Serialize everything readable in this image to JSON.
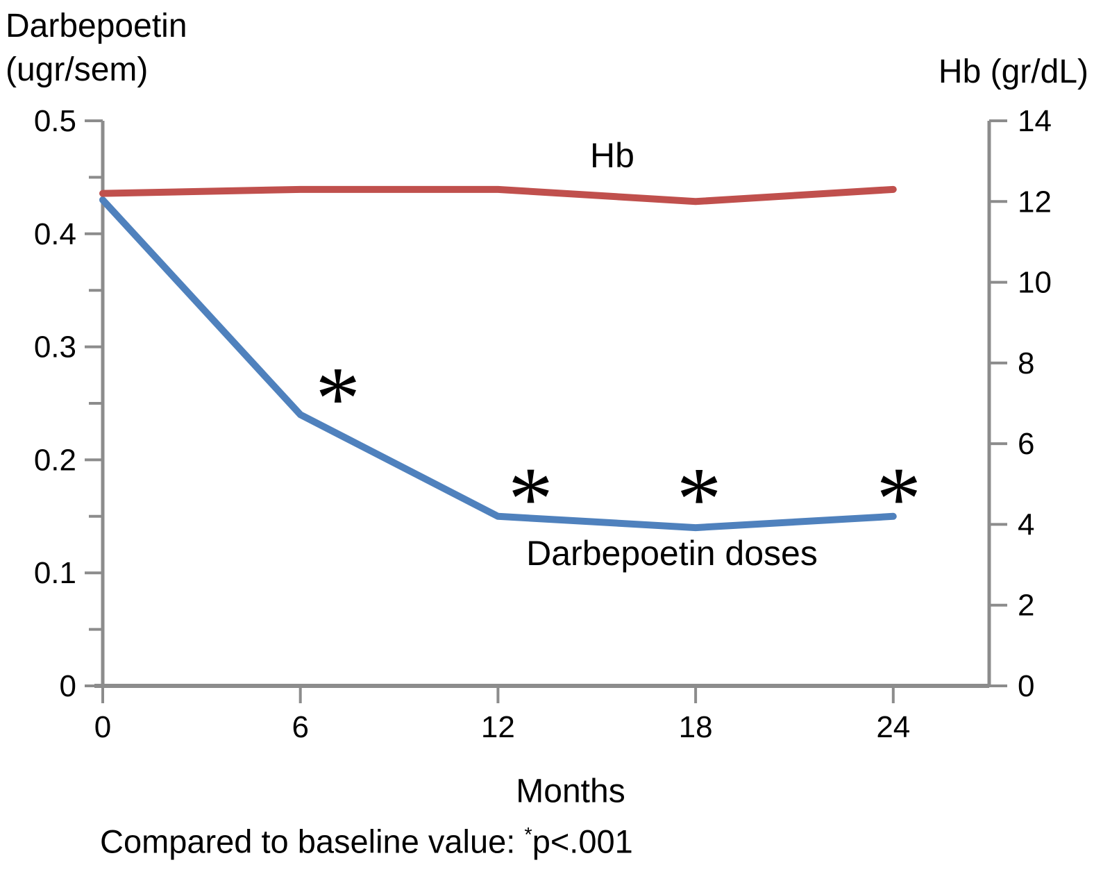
{
  "figure": {
    "left_axis_title_line1": "Darbepoetin",
    "left_axis_title_line2": "(ugr/sem)",
    "right_axis_title": "Hb (gr/dL)",
    "footnote": {
      "text_before": "Compared to baseline value: ",
      "symbol": "*",
      "text_after": "p<.001"
    }
  },
  "labels": {
    "hb": "Hb",
    "darbepoetin": "Darbepoetin doses"
  },
  "chart_data": {
    "type": "line",
    "title": "",
    "xlabel": "Months",
    "x": [
      0,
      6,
      12,
      18,
      24
    ],
    "x_tick_labels": [
      "0",
      "6",
      "12",
      "18",
      "24"
    ],
    "series": [
      {
        "name": "Darbepoetin doses",
        "yaxis": "left",
        "color": "#4F81BD",
        "values": [
          0.43,
          0.24,
          0.15,
          0.14,
          0.15
        ]
      },
      {
        "name": "Hb",
        "yaxis": "right",
        "color": "#C0504D",
        "values": [
          12.2,
          12.3,
          12.3,
          12.0,
          12.3
        ]
      }
    ],
    "left_axis": {
      "title": "Darbepoetin (ugr/sem)",
      "min": 0,
      "max": 0.5,
      "major_ticks": [
        0.5,
        0.4,
        0.3,
        0.2,
        0.1,
        0
      ],
      "tick_labels": [
        "0.5",
        "0.4",
        "0.3",
        "0.2",
        "0.1",
        "0"
      ],
      "minor_ticks": [
        0.45,
        0.35,
        0.25,
        0.15,
        0.05
      ]
    },
    "right_axis": {
      "title": "Hb (gr/dL)",
      "min": 0,
      "max": 14,
      "major_ticks": [
        14,
        12,
        10,
        8,
        6,
        4,
        2,
        0
      ],
      "tick_labels": [
        "14",
        "12",
        "10",
        "8",
        "6",
        "4",
        "2",
        "0"
      ]
    },
    "significance": {
      "symbol": "*",
      "at_months": [
        6,
        12,
        18,
        24
      ],
      "applies_to": "Darbepoetin doses",
      "note": "Compared to baseline value: *p<.001"
    },
    "legend": "none",
    "grid": false
  }
}
